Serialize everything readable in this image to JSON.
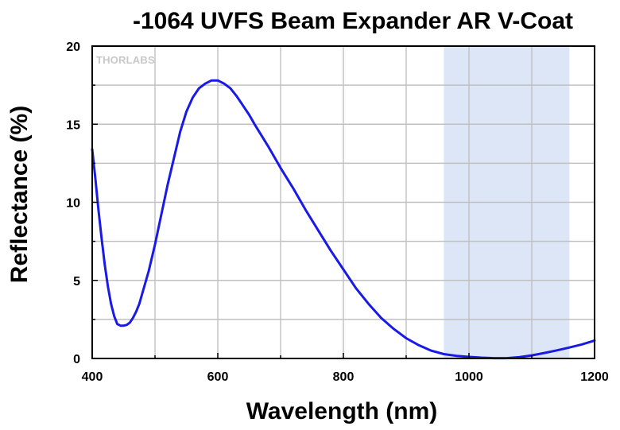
{
  "chart_data": {
    "type": "line",
    "title": "-1064 UVFS Beam Expander AR V-Coat",
    "xlabel": "Wavelength (nm)",
    "ylabel": "Reflectance (%)",
    "xlim": [
      400,
      1200
    ],
    "ylim": [
      0,
      20
    ],
    "xticks": [
      400,
      600,
      800,
      1000,
      1200
    ],
    "yticks": [
      0,
      5,
      10,
      15,
      20
    ],
    "xtick_labels": [
      "400",
      "600",
      "800",
      "1000",
      "1200"
    ],
    "ytick_labels": [
      "0",
      "5",
      "10",
      "15",
      "20"
    ],
    "grid": true,
    "highlight_band": {
      "x_start": 960,
      "x_end": 1160,
      "color": "#dce6f7"
    },
    "watermark": "THORLABS",
    "series": [
      {
        "color": "#1a1ae6",
        "x": [
          400,
          405,
          410,
          415,
          420,
          425,
          430,
          435,
          440,
          445,
          450,
          455,
          460,
          465,
          470,
          475,
          480,
          490,
          500,
          510,
          520,
          530,
          540,
          550,
          560,
          570,
          580,
          590,
          600,
          610,
          620,
          630,
          640,
          650,
          660,
          680,
          700,
          720,
          740,
          760,
          780,
          800,
          820,
          840,
          860,
          880,
          900,
          920,
          940,
          960,
          980,
          1000,
          1020,
          1040,
          1060,
          1080,
          1100,
          1120,
          1140,
          1160,
          1180,
          1200
        ],
        "y": [
          13.4,
          11.5,
          9.5,
          7.7,
          6.0,
          4.6,
          3.5,
          2.7,
          2.2,
          2.1,
          2.1,
          2.15,
          2.3,
          2.6,
          3.0,
          3.5,
          4.2,
          5.6,
          7.3,
          9.2,
          11.1,
          12.8,
          14.5,
          15.8,
          16.7,
          17.3,
          17.6,
          17.8,
          17.8,
          17.6,
          17.3,
          16.8,
          16.2,
          15.6,
          14.9,
          13.6,
          12.2,
          10.9,
          9.5,
          8.2,
          6.9,
          5.7,
          4.5,
          3.5,
          2.6,
          1.9,
          1.3,
          0.85,
          0.5,
          0.28,
          0.17,
          0.1,
          0.05,
          0.02,
          0.02,
          0.08,
          0.2,
          0.35,
          0.52,
          0.7,
          0.9,
          1.15
        ]
      }
    ]
  }
}
